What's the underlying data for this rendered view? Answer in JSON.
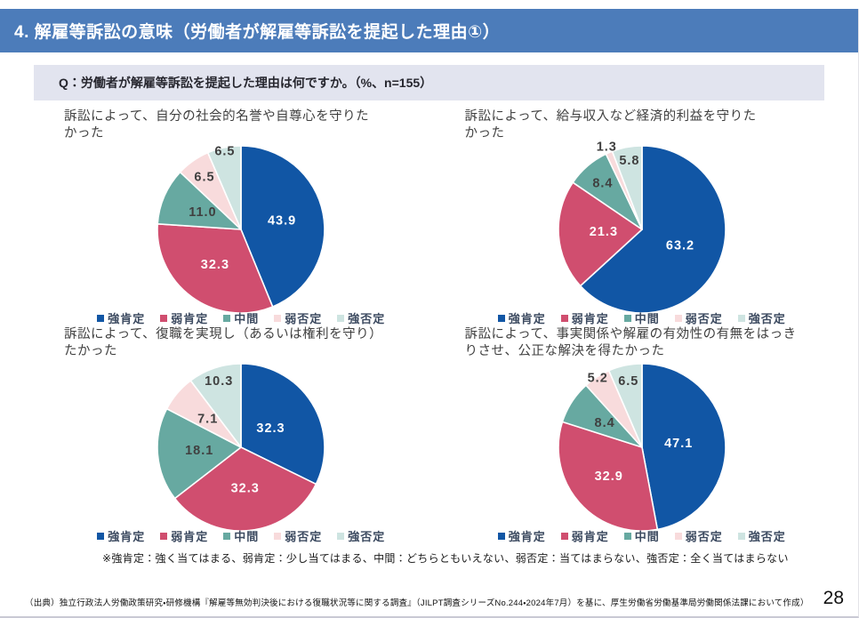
{
  "page": {
    "title": "4. 解雇等訴訟の意味（労働者が解雇等訴訟を提起した理由①）",
    "question": "Q：労働者が解雇等訴訟を提起した理由は何ですか。（%、n=155）",
    "footnote": "※強肯定：強く当てはまる、弱肯定：少し当てはまる、中間：どちらともいえない、弱否定：当てはまらない、強否定：全く当てはまらない",
    "source": "（出典）独立行政法人労働政策研究・研修機構『解雇等無効判決後における復職状況等に関する調査』（JILPT調査シリーズNo.244・2024年7月）を基に、厚生労働省労働基準局労働関係法課において作成）",
    "page_number": "28"
  },
  "colors": {
    "header_bg": "#4c7cba",
    "question_bg": "#e2e4ef",
    "slice_colors": [
      "#1156a5",
      "#d04e6f",
      "#67a9a1",
      "#f8dbdc",
      "#cee4e1"
    ],
    "label_dark": "#404040",
    "label_light": "#ffffff"
  },
  "legend": [
    "強肯定",
    "弱肯定",
    "中間",
    "弱否定",
    "強否定"
  ],
  "chart_data": [
    {
      "type": "pie",
      "title": "訴訟によって、自分の社会的名誉や自尊心を守りたかった",
      "title_lines": [
        "訴訟によって、自分の社会的名誉や自尊心を守りた",
        "かった"
      ],
      "categories": [
        "強肯定",
        "弱肯定",
        "中間",
        "弱否定",
        "強否定"
      ],
      "values": [
        43.9,
        32.3,
        11.0,
        6.5,
        6.5
      ],
      "label_radius": [
        0.5,
        0.53,
        0.5,
        0.76,
        0.95
      ],
      "legend_position": "bottom"
    },
    {
      "type": "pie",
      "title": "訴訟によって、給与収入など経済的利益を守りたかった",
      "title_lines": [
        "訴訟によって、給与収入など経済的利益を守りた",
        "かった"
      ],
      "categories": [
        "強肯定",
        "弱肯定",
        "中間",
        "弱否定",
        "強否定"
      ],
      "values": [
        63.2,
        21.3,
        8.4,
        1.3,
        5.8
      ],
      "label_radius": [
        0.5,
        0.46,
        0.72,
        1.07,
        0.83
      ],
      "legend_position": "bottom"
    },
    {
      "type": "pie",
      "title": "訴訟によって、復職を実現し（あるいは権利を守り）たかった",
      "title_lines": [
        "訴訟によって、復職を実現し（あるいは権利を守り）",
        "たかった"
      ],
      "categories": [
        "強肯定",
        "弱肯定",
        "中間",
        "弱否定",
        "強否定"
      ],
      "values": [
        32.3,
        32.3,
        18.1,
        7.1,
        10.3
      ],
      "label_radius": [
        0.42,
        0.5,
        0.5,
        0.52,
        0.83
      ],
      "legend_position": "bottom"
    },
    {
      "type": "pie",
      "title": "訴訟によって、事実関係や解雇の有効性の有無をはっきりさせ、公正な解決を得たかった",
      "title_lines": [
        "訴訟によって、事実関係や解雇の有効性の有無をはっき",
        "りさせ、公正な解決を得たかった"
      ],
      "categories": [
        "強肯定",
        "弱肯定",
        "中間",
        "弱否定",
        "強否定"
      ],
      "values": [
        47.1,
        32.9,
        8.4,
        5.2,
        6.5
      ],
      "label_radius": [
        0.44,
        0.53,
        0.53,
        0.98,
        0.8
      ],
      "legend_position": "bottom"
    }
  ]
}
